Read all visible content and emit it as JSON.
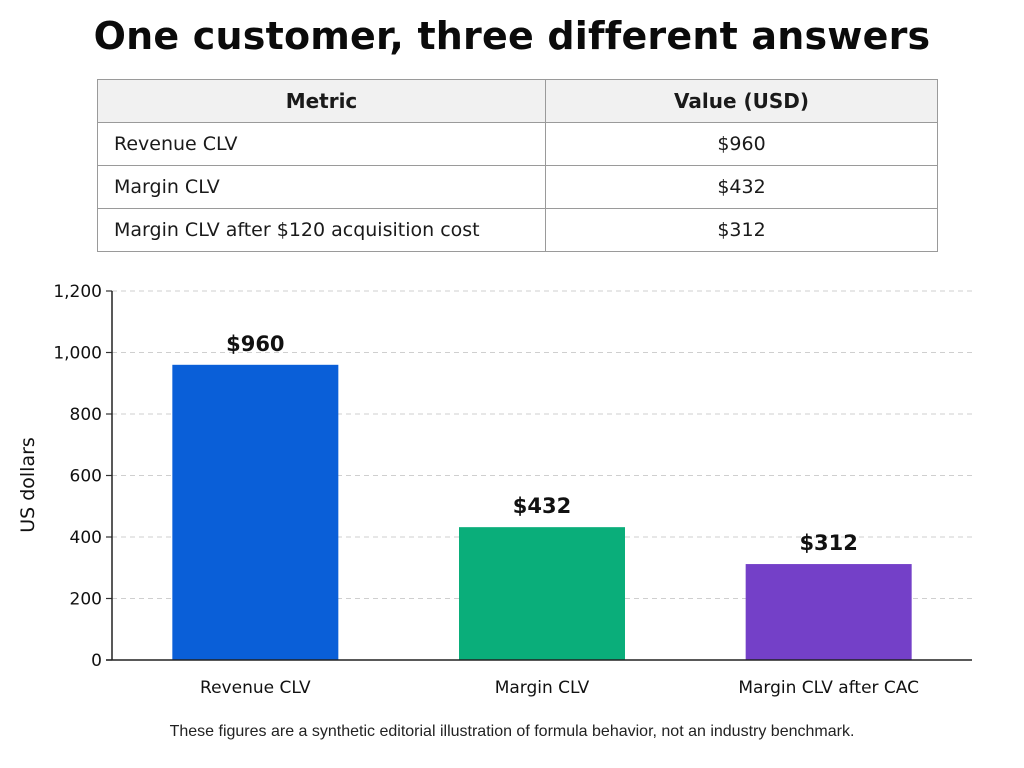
{
  "title": "One customer, three different answers",
  "table": {
    "headers": [
      "Metric",
      "Value (USD)"
    ],
    "rows": [
      {
        "metric": "Revenue CLV",
        "value": "$960"
      },
      {
        "metric": "Margin CLV",
        "value": "$432"
      },
      {
        "metric": "Margin CLV after $120 acquisition cost",
        "value": "$312"
      }
    ]
  },
  "chart_data": {
    "type": "bar",
    "categories": [
      "Revenue CLV",
      "Margin CLV",
      "Margin CLV after CAC"
    ],
    "values": [
      960,
      432,
      312
    ],
    "data_labels": [
      "$960",
      "$432",
      "$312"
    ],
    "colors": [
      "#0a5fd8",
      "#0aae7a",
      "#7440c8"
    ],
    "ylabel": "US dollars",
    "xlabel": "",
    "ylim": [
      0,
      1200
    ],
    "yticks": [
      0,
      200,
      400,
      600,
      800,
      1000,
      1200
    ],
    "ytick_labels": [
      "0",
      "200",
      "400",
      "600",
      "800",
      "1,000",
      "1,200"
    ],
    "grid": true
  },
  "footnote": "These figures are a synthetic editorial illustration of formula behavior, not an industry benchmark."
}
